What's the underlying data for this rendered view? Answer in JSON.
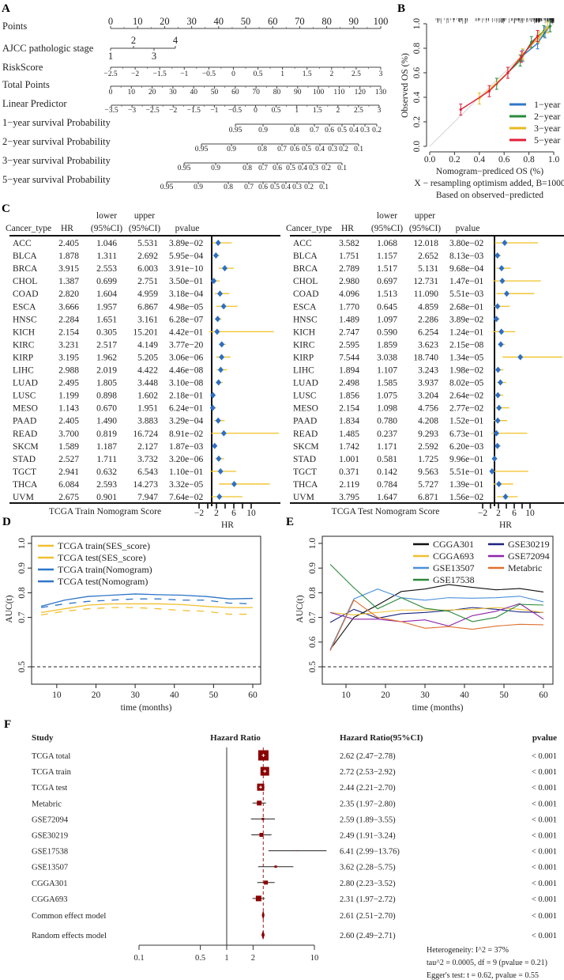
{
  "panel_labels": {
    "a": "A",
    "b": "B",
    "c": "C",
    "d": "D",
    "e": "E",
    "f": "F"
  },
  "chart_data": [
    {
      "panel": "A",
      "type": "nomogram",
      "rows": [
        {
          "label": "Points",
          "ticks": [
            "0",
            "10",
            "20",
            "30",
            "40",
            "50",
            "60",
            "70",
            "80",
            "90",
            "100"
          ]
        },
        {
          "label": "AJCC pathologic stage",
          "ticks": [
            "1",
            "2",
            "3",
            "4"
          ]
        },
        {
          "label": "RiskScore",
          "ticks": [
            "−2.5",
            "−2",
            "−1.5",
            "−1",
            "−0.5",
            "0",
            "0.5",
            "1",
            "1.5",
            "2",
            "2.5",
            "3"
          ]
        },
        {
          "label": "Total Points",
          "ticks": [
            "0",
            "10",
            "20",
            "30",
            "40",
            "50",
            "60",
            "70",
            "80",
            "90",
            "100",
            "110",
            "120",
            "130"
          ]
        },
        {
          "label": "Linear Predictor",
          "ticks": [
            "−3.5",
            "−3",
            "−2.5",
            "−2",
            "−1.5",
            "−1",
            "−0.5",
            "0",
            "0.5",
            "1",
            "1.5",
            "2",
            "2.5",
            "3"
          ]
        },
        {
          "label": "1−year survival Probability",
          "ticks": [
            "0.95",
            "0.9",
            "0.8",
            "0.7",
            "0.6",
            "0.5",
            "0.4",
            "0.3",
            "0.2"
          ]
        },
        {
          "label": "2−year survival Probability",
          "ticks": [
            "0.95",
            "0.9",
            "0.8",
            "0.7",
            "0.6",
            "0.5",
            "0.4",
            "0.3",
            "0.2",
            "0.1"
          ]
        },
        {
          "label": "3−year survival Probability",
          "ticks": [
            "0.95",
            "0.9",
            "0.8",
            "0.7",
            "0.6",
            "0.5",
            "0.4",
            "0.3",
            "0.2",
            "0.1"
          ]
        },
        {
          "label": "5−year survival Probability",
          "ticks": [
            "0.95",
            "0.9",
            "0.8",
            "0.7",
            "0.6",
            "0.5",
            "0.4",
            "0.3",
            "0.2",
            "0.1"
          ]
        }
      ]
    },
    {
      "panel": "B",
      "type": "line",
      "xlabel": "Nomogram−prediced OS (%)",
      "ylabel": "Observed OS (%)",
      "xlim": [
        0,
        1
      ],
      "ylim": [
        0,
        1
      ],
      "xticks": [
        "0.0",
        "0.2",
        "0.4",
        "0.6",
        "0.8",
        "1.0"
      ],
      "yticks": [
        "0.0",
        "0.2",
        "0.4",
        "0.6",
        "0.8",
        "1.0"
      ],
      "notes": [
        "X − resampling optimism added, B=1000",
        "Based on observed−predicted"
      ],
      "legend_position": "bottom-right",
      "series": [
        {
          "name": "1−year",
          "color": "#2e78c8",
          "points": [
            [
              0.75,
              0.74
            ],
            [
              0.87,
              0.84
            ],
            [
              0.93,
              0.93
            ],
            [
              0.97,
              0.98
            ]
          ]
        },
        {
          "name": "2−year",
          "color": "#2a8a3a",
          "points": [
            [
              0.54,
              0.51
            ],
            [
              0.73,
              0.7
            ],
            [
              0.82,
              0.85
            ],
            [
              0.92,
              0.94
            ],
            [
              0.97,
              0.98
            ]
          ]
        },
        {
          "name": "3−year",
          "color": "#e8b820",
          "points": [
            [
              0.4,
              0.39
            ],
            [
              0.63,
              0.6
            ],
            [
              0.75,
              0.75
            ],
            [
              0.88,
              0.89
            ],
            [
              0.95,
              0.97
            ]
          ]
        },
        {
          "name": "5−year",
          "color": "#e0203a",
          "points": [
            [
              0.25,
              0.3
            ],
            [
              0.48,
              0.45
            ],
            [
              0.63,
              0.6
            ],
            [
              0.74,
              0.73
            ],
            [
              0.87,
              0.9
            ]
          ]
        }
      ]
    },
    {
      "panel": "C-left",
      "type": "table",
      "title": "TCGA Train Nomogram Score",
      "columns": [
        "Cancer_type",
        "HR",
        "lower",
        "(95%CI)",
        "upper",
        "(95%CI)",
        "pvalue"
      ],
      "axis": {
        "label": "HR",
        "ticks": [
          "−2",
          "2",
          "6",
          "10"
        ]
      },
      "rows": [
        [
          "ACC",
          "2.405",
          "1.046",
          "5.531",
          "3.89e−02"
        ],
        [
          "BLCA",
          "1.878",
          "1.311",
          "2.692",
          "5.95e−04"
        ],
        [
          "BRCA",
          "3.915",
          "2.553",
          "6.003",
          "3.91e−10"
        ],
        [
          "CHOL",
          "1.387",
          "0.699",
          "2.751",
          "3.50e−01"
        ],
        [
          "COAD",
          "2.820",
          "1.604",
          "4.959",
          "3.18e−04"
        ],
        [
          "ESCA",
          "3.666",
          "1.957",
          "6.867",
          "4.98e−05"
        ],
        [
          "HNSC",
          "2.284",
          "1.651",
          "3.161",
          "6.28e−07"
        ],
        [
          "KICH",
          "2.154",
          "0.305",
          "15.201",
          "4.42e−01"
        ],
        [
          "KIRC",
          "3.231",
          "2.517",
          "4.149",
          "3.77e−20"
        ],
        [
          "KIRP",
          "3.195",
          "1.962",
          "5.205",
          "3.06e−06"
        ],
        [
          "LIHC",
          "2.988",
          "2.019",
          "4.422",
          "4.46e−08"
        ],
        [
          "LUAD",
          "2.495",
          "1.805",
          "3.448",
          "3.10e−08"
        ],
        [
          "LUSC",
          "1.199",
          "0.898",
          "1.602",
          "2.18e−01"
        ],
        [
          "MESO",
          "1.143",
          "0.670",
          "1.951",
          "6.24e−01"
        ],
        [
          "PAAD",
          "2.405",
          "1.490",
          "3.883",
          "3.29e−04"
        ],
        [
          "READ",
          "3.700",
          "0.819",
          "16.724",
          "8.91e−02"
        ],
        [
          "SKCM",
          "1.589",
          "1.187",
          "2.127",
          "1.87e−03"
        ],
        [
          "STAD",
          "2.527",
          "1.711",
          "3.732",
          "3.20e−06"
        ],
        [
          "TGCT",
          "2.941",
          "0.632",
          "6.543",
          "1.10e−01"
        ],
        [
          "THCA",
          "6.084",
          "2.593",
          "14.273",
          "3.32e−05"
        ],
        [
          "UVM",
          "2.675",
          "0.901",
          "7.947",
          "7.64e−02"
        ]
      ],
      "marker_color": "#2e6fc4",
      "ci_color": "#f0c020"
    },
    {
      "panel": "C-right",
      "type": "table",
      "title": "TCGA Test Nomogram Score",
      "columns": [
        "Cancer_type",
        "HR",
        "lower",
        "(95%CI)",
        "upper",
        "(95%CI)",
        "pvalue"
      ],
      "axis": {
        "label": "HR",
        "ticks": [
          "−2",
          "2",
          "6",
          "10"
        ]
      },
      "rows": [
        [
          "ACC",
          "3.582",
          "1.068",
          "12.018",
          "3.80e−02"
        ],
        [
          "BLCA",
          "1.751",
          "1.157",
          "2.652",
          "8.13e−03"
        ],
        [
          "BRCA",
          "2.789",
          "1.517",
          "5.131",
          "9.68e−04"
        ],
        [
          "CHOL",
          "2.980",
          "0.697",
          "12.731",
          "1.47e−01"
        ],
        [
          "COAD",
          "4.096",
          "1.513",
          "11.090",
          "5.51e−03"
        ],
        [
          "ESCA",
          "1.770",
          "0.645",
          "4.859",
          "2.68e−01"
        ],
        [
          "HNSC",
          "1.489",
          "1.097",
          "2.286",
          "3.89e−02"
        ],
        [
          "KICH",
          "2.747",
          "0.590",
          "6.254",
          "1.24e−01"
        ],
        [
          "KIRC",
          "2.595",
          "1.859",
          "3.623",
          "2.15e−08"
        ],
        [
          "KIRP",
          "7.544",
          "3.038",
          "18.740",
          "1.34e−05"
        ],
        [
          "LIHC",
          "1.894",
          "1.107",
          "3.243",
          "1.98e−02"
        ],
        [
          "LUAD",
          "2.498",
          "1.585",
          "3.937",
          "8.02e−05"
        ],
        [
          "LUSC",
          "1.856",
          "1.075",
          "3.204",
          "2.64e−02"
        ],
        [
          "MESO",
          "2.154",
          "1.098",
          "4.756",
          "2.77e−02"
        ],
        [
          "PAAD",
          "1.834",
          "0.780",
          "4.208",
          "1.52e−01"
        ],
        [
          "READ",
          "1.485",
          "0.237",
          "9.293",
          "6.73e−01"
        ],
        [
          "SKCM",
          "1.742",
          "1.171",
          "2.592",
          "6.20e−03"
        ],
        [
          "STAD",
          "1.001",
          "0.581",
          "1.725",
          "9.96e−01"
        ],
        [
          "TGCT",
          "0.371",
          "0.142",
          "9.563",
          "5.51e−01"
        ],
        [
          "THCA",
          "2.119",
          "0.784",
          "5.727",
          "1.39e−01"
        ],
        [
          "UVM",
          "3.795",
          "1.647",
          "6.871",
          "1.56e−02"
        ]
      ],
      "marker_color": "#2e6fc4",
      "ci_color": "#f0c020"
    },
    {
      "panel": "D",
      "type": "line",
      "xlabel": "time (months)",
      "ylabel": "AUC(t)",
      "xlim": [
        6,
        60
      ],
      "ylim": [
        0.5,
        1.0
      ],
      "xticks": [
        "10",
        "20",
        "30",
        "40",
        "50",
        "60"
      ],
      "yticks": [
        "0.5",
        "0.7",
        "0.8",
        "0.9",
        "1.0"
      ],
      "reference_line": 0.5,
      "legend_position": "top-left",
      "x": [
        6,
        12,
        18,
        24,
        30,
        36,
        42,
        48,
        54,
        60
      ],
      "series": [
        {
          "name": "TCGA train(SES_score)",
          "color": "#f0c030",
          "dash": false,
          "values": [
            0.72,
            0.735,
            0.75,
            0.755,
            0.755,
            0.755,
            0.752,
            0.745,
            0.74,
            0.74
          ]
        },
        {
          "name": "TCGA test(SES_score)",
          "color": "#f0c030",
          "dash": true,
          "values": [
            0.71,
            0.725,
            0.735,
            0.74,
            0.74,
            0.735,
            0.728,
            0.725,
            0.713,
            0.713
          ]
        },
        {
          "name": "TCGA train(Nomogram)",
          "color": "#2f75c8",
          "dash": false,
          "values": [
            0.745,
            0.77,
            0.785,
            0.79,
            0.795,
            0.792,
            0.79,
            0.785,
            0.775,
            0.777
          ]
        },
        {
          "name": "TCGA test(Nomogram)",
          "color": "#2f75c8",
          "dash": true,
          "values": [
            0.74,
            0.755,
            0.765,
            0.77,
            0.775,
            0.775,
            0.77,
            0.77,
            0.758,
            0.755
          ]
        }
      ]
    },
    {
      "panel": "E",
      "type": "line",
      "xlabel": "time (months)",
      "ylabel": "AUC(t)",
      "xlim": [
        6,
        60
      ],
      "ylim": [
        0.5,
        1.0
      ],
      "xticks": [
        "10",
        "20",
        "30",
        "40",
        "50",
        "60"
      ],
      "yticks": [
        "0.5",
        "0.6",
        "0.7",
        "0.8",
        "0.9",
        "1.0"
      ],
      "reference_line": 0.5,
      "legend_position": "top-right",
      "x": [
        6,
        12,
        18,
        24,
        30,
        36,
        42,
        48,
        54,
        60
      ],
      "series": [
        {
          "name": "CGGA301",
          "color": "#111111",
          "values": [
            0.57,
            0.7,
            0.75,
            0.805,
            0.815,
            0.833,
            0.822,
            0.812,
            0.817,
            0.803
          ]
        },
        {
          "name": "GSE30219",
          "color": "#1a237e",
          "values": [
            0.68,
            0.733,
            0.697,
            0.715,
            0.72,
            0.728,
            0.74,
            0.733,
            0.722,
            0.72
          ]
        },
        {
          "name": "CGGA693",
          "color": "#f0c030",
          "values": [
            0.72,
            0.71,
            0.72,
            0.73,
            0.73,
            0.73,
            0.733,
            0.74,
            0.733,
            0.72
          ]
        },
        {
          "name": "GSE72094",
          "color": "#8e24aa",
          "values": [
            0.72,
            0.693,
            0.693,
            0.683,
            0.69,
            0.665,
            0.707,
            0.725,
            0.756,
            0.693
          ]
        },
        {
          "name": "GSE13507",
          "color": "#4a90d9",
          "values": [
            0.57,
            0.775,
            0.815,
            0.78,
            0.77,
            0.78,
            0.778,
            0.78,
            0.786,
            0.763
          ]
        },
        {
          "name": "Metabric",
          "color": "#e07030",
          "values": [
            0.565,
            0.77,
            0.7,
            0.683,
            0.656,
            0.663,
            0.652,
            0.665,
            0.672,
            0.67
          ]
        },
        {
          "name": "GSE17538",
          "color": "#2a8a3a",
          "values": [
            0.915,
            0.82,
            0.735,
            0.78,
            0.737,
            0.725,
            0.683,
            0.7,
            0.753,
            0.75
          ]
        }
      ]
    },
    {
      "panel": "F",
      "type": "forest",
      "headers": {
        "study": "Study",
        "plot": "Hazard Ratio",
        "ci": "Hazard Ratio(95%CI)",
        "pvalue": "pvalue"
      },
      "xscale": "log",
      "xticks": [
        "0.1",
        "0.5",
        "1",
        "2",
        "10"
      ],
      "color": "#8b0000",
      "studies": [
        {
          "name": "TCGA total",
          "hr": 2.62,
          "lower": 2.47,
          "upper": 2.78,
          "ci_text": "2.62 (2.47−2.78)",
          "pvalue": "< 0.001"
        },
        {
          "name": "TCGA train",
          "hr": 2.72,
          "lower": 2.53,
          "upper": 2.92,
          "ci_text": "2.72 (2.53−2.92)",
          "pvalue": "< 0.001"
        },
        {
          "name": "TCGA test",
          "hr": 2.44,
          "lower": 2.21,
          "upper": 2.7,
          "ci_text": "2.44 (2.21−2.70)",
          "pvalue": "< 0.001"
        },
        {
          "name": "Metabric",
          "hr": 2.35,
          "lower": 1.97,
          "upper": 2.8,
          "ci_text": "2.35 (1.97−2.80)",
          "pvalue": "< 0.001"
        },
        {
          "name": "GSE72094",
          "hr": 2.59,
          "lower": 1.89,
          "upper": 3.55,
          "ci_text": "2.59 (1.89−3.55)",
          "pvalue": "< 0.001"
        },
        {
          "name": "GSE30219",
          "hr": 2.49,
          "lower": 1.91,
          "upper": 3.24,
          "ci_text": "2.49 (1.91−3.24)",
          "pvalue": "< 0.001"
        },
        {
          "name": "GSE17538",
          "hr": 6.41,
          "lower": 2.99,
          "upper": 13.76,
          "ci_text": "6.41 (2.99−13.76)",
          "pvalue": "< 0.001"
        },
        {
          "name": "GSE13507",
          "hr": 3.62,
          "lower": 2.28,
          "upper": 5.75,
          "ci_text": "3.62 (2.28−5.75)",
          "pvalue": "< 0.001"
        },
        {
          "name": "CGGA301",
          "hr": 2.8,
          "lower": 2.23,
          "upper": 3.52,
          "ci_text": "2.80 (2.23−3.52)",
          "pvalue": "< 0.001"
        },
        {
          "name": "CGGA693",
          "hr": 2.31,
          "lower": 1.97,
          "upper": 2.72,
          "ci_text": "2.31 (1.97−2.72)",
          "pvalue": "< 0.001"
        }
      ],
      "models": [
        {
          "name": "Common effect model",
          "hr": 2.61,
          "lower": 2.51,
          "upper": 2.7,
          "ci_text": "2.61 (2.51−2.70)",
          "pvalue": "< 0.001"
        },
        {
          "name": "Random effects model",
          "hr": 2.6,
          "lower": 2.49,
          "upper": 2.71,
          "ci_text": "2.60 (2.49−2.71)",
          "pvalue": "< 0.001"
        }
      ],
      "heterogeneity": [
        "Heterogeneity: I^2 = 37%",
        "tau^2 = 0.0005, df = 9 (pvalue = 0.21)",
        "Egger's test: t = 0.62, pvalue = 0.55"
      ]
    }
  ]
}
